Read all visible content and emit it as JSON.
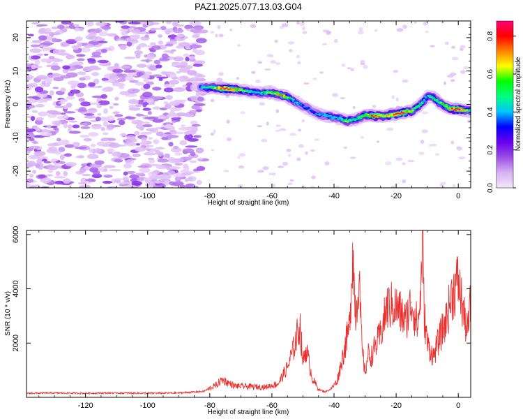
{
  "figure_title": "PAZ1.2025.077.13.03.G04",
  "chart_data": [
    {
      "type": "heatmap",
      "title": "PAZ1.2025.077.13.03.G04",
      "xlabel": "Height of straight line (km)",
      "ylabel": "Frequency (Hz)",
      "xlim": [
        -139,
        4
      ],
      "ylim": [
        -25,
        25
      ],
      "x_ticks": [
        -120,
        -100,
        -80,
        -60,
        -40,
        -20,
        0
      ],
      "y_ticks": [
        -20,
        -10,
        0,
        10,
        20
      ],
      "colorbar": {
        "label": "Normalized spectral amplitude",
        "range": [
          0.0,
          0.88
        ],
        "ticks": [
          0.0,
          0.2,
          0.4,
          0.6,
          0.8
        ],
        "colormap": [
          "#f3e6fb",
          "#d7b0f5",
          "#9b4de6",
          "#6a00ee",
          "#0000ff",
          "#00c8ff",
          "#00ff80",
          "#00ff00",
          "#ffff00",
          "#ff8000",
          "#ff0000",
          "#ff0080"
        ]
      },
      "ridge": {
        "x": [
          -83,
          -79,
          -75,
          -72,
          -68,
          -64,
          -60,
          -57,
          -54,
          -51,
          -48,
          -45,
          -42,
          -39,
          -36,
          -33,
          -30,
          -27,
          -24,
          -21,
          -18,
          -15,
          -12,
          -10,
          -8,
          -6,
          -4,
          -2,
          0,
          2,
          4
        ],
        "y": [
          5,
          5,
          4.8,
          4.5,
          4,
          3.5,
          3.5,
          2.8,
          1.8,
          0,
          -1.5,
          -3,
          -3.5,
          -4,
          -5,
          -4.5,
          -3.2,
          -3.5,
          -3.5,
          -3.0,
          -2.5,
          -2,
          0,
          2.5,
          2,
          0.5,
          -0.5,
          -1.5,
          -1.5,
          -1.8,
          -2
        ],
        "amplitude": [
          0.4,
          0.55,
          0.88,
          0.7,
          0.5,
          0.45,
          0.6,
          0.7,
          0.5,
          0.4,
          0.35,
          0.4,
          0.45,
          0.4,
          0.6,
          0.5,
          0.55,
          0.8,
          0.6,
          0.75,
          0.8,
          0.6,
          0.5,
          0.45,
          0.5,
          0.55,
          0.6,
          0.75,
          0.85,
          0.6,
          0.5
        ]
      },
      "noise_region_x": [
        -139,
        -82
      ],
      "grid": false
    },
    {
      "type": "line",
      "xlabel": "Height of straight line (km)",
      "ylabel": "SNR (10 * v/v)",
      "xlim": [
        -139,
        4
      ],
      "ylim": [
        0,
        6150
      ],
      "x_ticks": [
        -120,
        -100,
        -80,
        -60,
        -40,
        -20,
        0
      ],
      "y_ticks": [
        2000,
        4000,
        6000
      ],
      "color": "#e8312f",
      "grid": false,
      "series": [
        {
          "x": [
            -139,
            -130,
            -120,
            -110,
            -100,
            -90,
            -82,
            -78,
            -76,
            -72,
            -68,
            -62,
            -58,
            -55,
            -53,
            -51,
            -50,
            -49,
            -47,
            -45,
            -43,
            -41,
            -39,
            -37,
            -35,
            -34,
            -33,
            -32,
            -31,
            -30,
            -29,
            -28,
            -27,
            -25,
            -23,
            -21,
            -19,
            -17,
            -15,
            -13,
            -12,
            -11.5,
            -11,
            -10,
            -8,
            -6,
            -4,
            -2,
            0,
            1,
            2,
            3,
            4
          ],
          "values": [
            150,
            160,
            150,
            160,
            150,
            160,
            220,
            450,
            650,
            420,
            400,
            380,
            500,
            1100,
            1800,
            2700,
            1300,
            1800,
            700,
            300,
            200,
            300,
            600,
            1600,
            2600,
            5400,
            3000,
            4500,
            1800,
            900,
            1600,
            1500,
            1800,
            2300,
            3300,
            3400,
            3200,
            2800,
            3500,
            2600,
            4000,
            6100,
            3100,
            2000,
            1500,
            2200,
            2800,
            3800,
            4300,
            3600,
            2900,
            2400,
            3500
          ]
        }
      ]
    }
  ]
}
